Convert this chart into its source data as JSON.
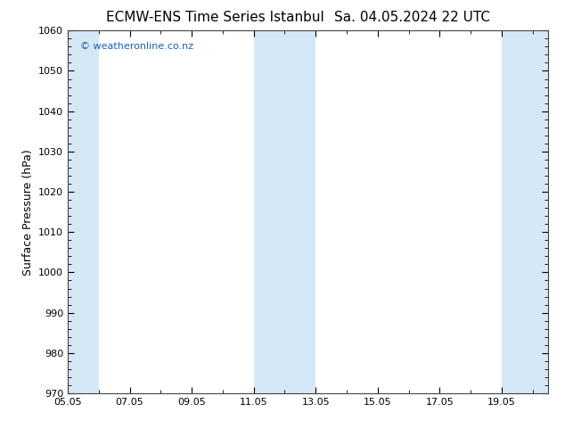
{
  "title_left": "ECMW-ENS Time Series Istanbul",
  "title_right": "Sa. 04.05.2024 22 UTC",
  "ylabel": "Surface Pressure (hPa)",
  "ylim": [
    970,
    1060
  ],
  "yticks": [
    970,
    980,
    990,
    1000,
    1010,
    1020,
    1030,
    1040,
    1050,
    1060
  ],
  "xlim": [
    0,
    15.5
  ],
  "xtick_labels": [
    "05.05",
    "07.05",
    "09.05",
    "11.05",
    "13.05",
    "15.05",
    "17.05",
    "19.05"
  ],
  "xtick_positions": [
    0,
    2,
    4,
    6,
    8,
    10,
    12,
    14
  ],
  "shade_bands": [
    {
      "x_start": 0,
      "x_end": 1
    },
    {
      "x_start": 6,
      "x_end": 8
    },
    {
      "x_start": 14,
      "x_end": 15.5
    }
  ],
  "shade_color": "#d6e8f5",
  "watermark_text": "© weatheronline.co.nz",
  "watermark_color": "#1a5fb4",
  "background_color": "#ffffff",
  "plot_bg_color": "#ffffff",
  "border_color": "#444444",
  "title_fontsize": 11,
  "tick_fontsize": 8,
  "ylabel_fontsize": 9
}
